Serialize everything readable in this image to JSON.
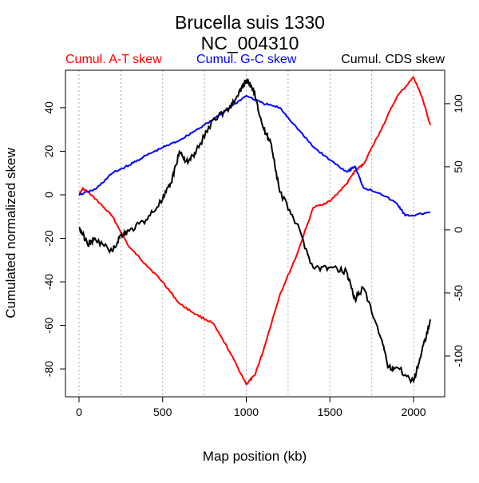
{
  "chart_data": {
    "type": "line",
    "title": "Brucella suis 1330",
    "subtitle": "NC_004310",
    "xlabel": "Map position (kb)",
    "ylabel": "Cumulated normalized skew",
    "xlim": [
      -81,
      2186
    ],
    "ylim_left": [
      -92.8,
      57.2
    ],
    "ylim_right": [
      -132.3,
      126.5
    ],
    "x_ticks": [
      0,
      500,
      1000,
      1500,
      2000
    ],
    "y_ticks_left": [
      -80,
      -60,
      -40,
      -20,
      0,
      20,
      40
    ],
    "y_ticks_right": [
      -100,
      -50,
      0,
      50,
      100
    ],
    "vgrid": [
      0,
      250,
      500,
      750,
      1000,
      1250,
      1500,
      1750,
      2000
    ],
    "legend": [
      "Cumul. A-T skew",
      "Cumul. G-C skew",
      "Cumul. CDS skew"
    ],
    "legend_placement": "top",
    "series": [
      {
        "name": "Cumul. A-T skew",
        "axis": "left",
        "color": "#ff0000",
        "x": [
          0,
          25,
          100,
          200,
          300,
          400,
          500,
          600,
          700,
          800,
          900,
          1000,
          1050,
          1100,
          1200,
          1300,
          1400,
          1500,
          1600,
          1650,
          1700,
          1800,
          1900,
          2000,
          2050,
          2100
        ],
        "y": [
          0,
          3,
          -2,
          -10,
          -24,
          -32,
          -40,
          -50,
          -55,
          -59,
          -72,
          -87,
          -83,
          -72,
          -46,
          -28,
          -6,
          -3,
          5,
          11,
          14,
          29,
          45,
          54,
          45,
          32
        ]
      },
      {
        "name": "Cumul. G-C skew",
        "axis": "left",
        "color": "#0000ff",
        "x": [
          0,
          100,
          200,
          300,
          400,
          500,
          600,
          700,
          800,
          900,
          1000,
          1100,
          1200,
          1300,
          1400,
          1500,
          1600,
          1650,
          1700,
          1800,
          1900,
          1950,
          2000,
          2100
        ],
        "y": [
          0,
          2.6,
          10,
          13.6,
          18,
          21.7,
          25,
          29.7,
          34.5,
          40,
          45.5,
          42,
          40,
          31,
          22,
          16,
          10.6,
          13,
          3.3,
          0.7,
          -4,
          -9.5,
          -9.5,
          -8
        ]
      },
      {
        "name": "Cumul. CDS skew",
        "axis": "right",
        "color": "#000000",
        "x": [
          0,
          50,
          100,
          200,
          250,
          300,
          400,
          500,
          550,
          600,
          650,
          700,
          800,
          900,
          950,
          1000,
          1050,
          1100,
          1150,
          1200,
          1300,
          1400,
          1500,
          1600,
          1650,
          1700,
          1800,
          1850,
          1900,
          2000,
          2050,
          2100
        ],
        "y": [
          2,
          -11,
          -8,
          -17,
          -4,
          -1,
          8,
          24,
          37,
          62,
          53,
          62,
          87,
          97,
          106,
          119,
          109,
          81,
          68,
          30,
          5,
          -30,
          -30,
          -33,
          -55,
          -46,
          -84,
          -109,
          -109,
          -120,
          -96,
          -71
        ]
      }
    ]
  }
}
